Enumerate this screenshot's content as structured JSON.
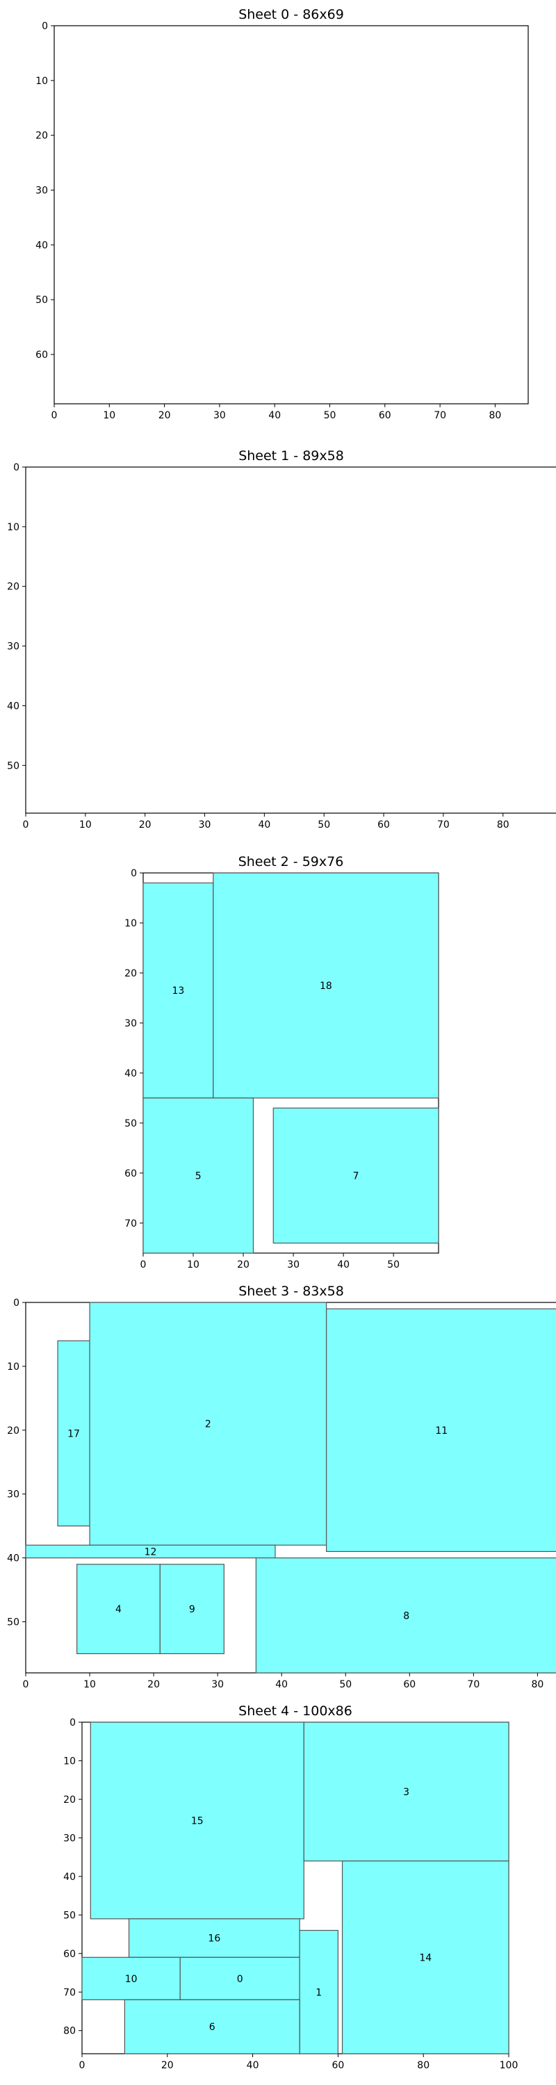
{
  "colors": {
    "piece_fill": "#80ffff",
    "piece_edge": "#555555",
    "frame": "#000000"
  },
  "chart_data": [
    {
      "type": "packing",
      "title": "Sheet 0 - 86x69",
      "width": 86,
      "height": 69,
      "xticks": [
        0,
        10,
        20,
        30,
        40,
        50,
        60,
        70,
        80
      ],
      "yticks": [
        0,
        10,
        20,
        30,
        40,
        50,
        60
      ],
      "rects": []
    },
    {
      "type": "packing",
      "title": "Sheet 1 - 89x58",
      "width": 89,
      "height": 58,
      "xticks": [
        0,
        10,
        20,
        30,
        40,
        50,
        60,
        70,
        80
      ],
      "yticks": [
        0,
        10,
        20,
        30,
        40,
        50
      ],
      "rects": []
    },
    {
      "type": "packing",
      "title": "Sheet 2 - 59x76",
      "width": 59,
      "height": 76,
      "xticks": [
        0,
        10,
        20,
        30,
        40,
        50
      ],
      "yticks": [
        0,
        10,
        20,
        30,
        40,
        50,
        60,
        70
      ],
      "rects": [
        {
          "id": "13",
          "x": 0,
          "y": 2,
          "w": 14,
          "h": 43
        },
        {
          "id": "18",
          "x": 14,
          "y": 0,
          "w": 45,
          "h": 45
        },
        {
          "id": "5",
          "x": 0,
          "y": 45,
          "w": 22,
          "h": 31
        },
        {
          "id": "7",
          "x": 26,
          "y": 47,
          "w": 33,
          "h": 27
        }
      ]
    },
    {
      "type": "packing",
      "title": "Sheet 3 - 83x58",
      "width": 83,
      "height": 58,
      "xticks": [
        0,
        10,
        20,
        30,
        40,
        50,
        60,
        70,
        80
      ],
      "yticks": [
        0,
        10,
        20,
        30,
        40,
        50
      ],
      "rects": [
        {
          "id": "17",
          "x": 5,
          "y": 6,
          "w": 5,
          "h": 29
        },
        {
          "id": "2",
          "x": 10,
          "y": 0,
          "w": 37,
          "h": 38
        },
        {
          "id": "11",
          "x": 47,
          "y": 1,
          "w": 36,
          "h": 38
        },
        {
          "id": "12",
          "x": 0,
          "y": 38,
          "w": 39,
          "h": 2
        },
        {
          "id": "4",
          "x": 8,
          "y": 41,
          "w": 13,
          "h": 14
        },
        {
          "id": "9",
          "x": 21,
          "y": 41,
          "w": 10,
          "h": 14
        },
        {
          "id": "8",
          "x": 36,
          "y": 40,
          "w": 47,
          "h": 18
        }
      ]
    },
    {
      "type": "packing",
      "title": "Sheet 4 - 100x86",
      "width": 100,
      "height": 86,
      "xticks": [
        0,
        20,
        40,
        60,
        80,
        100
      ],
      "yticks": [
        0,
        10,
        20,
        30,
        40,
        50,
        60,
        70,
        80
      ],
      "rects": [
        {
          "id": "15",
          "x": 2,
          "y": 0,
          "w": 50,
          "h": 51
        },
        {
          "id": "3",
          "x": 52,
          "y": 0,
          "w": 48,
          "h": 36
        },
        {
          "id": "14",
          "x": 61,
          "y": 36,
          "w": 39,
          "h": 50
        },
        {
          "id": "16",
          "x": 11,
          "y": 51,
          "w": 40,
          "h": 10
        },
        {
          "id": "10",
          "x": 0,
          "y": 61,
          "w": 23,
          "h": 11
        },
        {
          "id": "0",
          "x": 23,
          "y": 61,
          "w": 28,
          "h": 11
        },
        {
          "id": "1",
          "x": 51,
          "y": 54,
          "w": 9,
          "h": 32
        },
        {
          "id": "6",
          "x": 10,
          "y": 72,
          "w": 41,
          "h": 14
        }
      ]
    }
  ]
}
